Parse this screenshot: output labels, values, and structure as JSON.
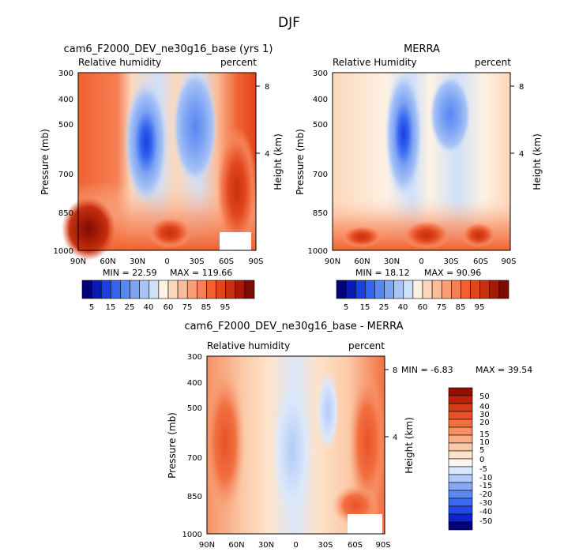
{
  "page": {
    "title": "DJF"
  },
  "scale": {
    "full_colors": [
      "#02027d",
      "#0a1ab5",
      "#1d3fde",
      "#3465f0",
      "#5687f2",
      "#7ea4f4",
      "#a8c3f6",
      "#cfe0f9",
      "#fdf1e3",
      "#fcd7bb",
      "#fbbc99",
      "#f99e77",
      "#f67f55",
      "#f1612f",
      "#e0451c",
      "#c5300f",
      "#a61b08",
      "#7d0b03"
    ],
    "diff_colors": [
      "#02027d",
      "#0f24c4",
      "#2048e6",
      "#3869ef",
      "#5b89f2",
      "#86a9f4",
      "#b1caf7",
      "#dbe8fb",
      "#fdf6ee",
      "#fde3cb",
      "#fbc9a7",
      "#f9ad85",
      "#f68f63",
      "#f27040",
      "#e95126",
      "#d63a16",
      "#b8240b",
      "#8e1104"
    ]
  },
  "panels": [
    {
      "id": "model",
      "title": "cam6_F2000_DEV_ne30g16_base (yrs 1)",
      "left_label": "Relative humidity",
      "right_label": "percent",
      "ylabel": "Pressure (mb)",
      "ylabel_right": "Height (km)",
      "min_text": "MIN =   22.59",
      "max_text": "MAX =  119.66"
    },
    {
      "id": "obs",
      "title": "MERRA",
      "left_label": "Relative Humidity",
      "right_label": "percent",
      "ylabel": "Pressure (mb)",
      "ylabel_right": "Height (km)",
      "min_text": "MIN =   18.12",
      "max_text": "MAX =   90.96"
    },
    {
      "id": "diff",
      "title": "cam6_F2000_DEV_ne30g16_base - MERRA",
      "left_label": "Relative humidity",
      "right_label": "percent",
      "ylabel": "Pressure (mb)",
      "ylabel_right": "Height (km)",
      "min_text": "MIN =   -6.83",
      "max_text": "MAX =   39.54"
    }
  ],
  "chart_data": [
    {
      "type": "heatmap",
      "title": "cam6_F2000_DEV_ne30g16_base (yrs 1)",
      "variable": "Relative humidity",
      "units": "percent",
      "xlabel": "",
      "ylabel": "Pressure (mb)",
      "y2label": "Height (km)",
      "x_ticks": [
        "90N",
        "60N",
        "30N",
        "0",
        "30S",
        "60S",
        "90S"
      ],
      "x_range": [
        90,
        -90
      ],
      "y_ticks": [
        "300",
        "400",
        "500",
        "700",
        "850",
        "1000"
      ],
      "y_range": [
        300,
        1000
      ],
      "y2_ticks": [
        "8",
        "4"
      ],
      "min": 22.59,
      "max": 119.66,
      "colorbar_levels": [
        "5",
        "15",
        "25",
        "40",
        "60",
        "75",
        "85",
        "95"
      ],
      "features": [
        {
          "lat": 20,
          "p": 520,
          "value": 25
        },
        {
          "lat": -20,
          "p": 470,
          "value": 35
        },
        {
          "lat": -70,
          "p": 650,
          "value": 95
        },
        {
          "lat": 80,
          "p": 950,
          "value": 110
        },
        {
          "lat": 0,
          "p": 960,
          "value": 85
        }
      ]
    },
    {
      "type": "heatmap",
      "title": "MERRA",
      "variable": "Relative Humidity",
      "units": "percent",
      "xlabel": "",
      "ylabel": "Pressure (mb)",
      "y2label": "Height (km)",
      "x_ticks": [
        "90N",
        "60N",
        "30N",
        "0",
        "30S",
        "60S",
        "90S"
      ],
      "x_range": [
        90,
        -90
      ],
      "y_ticks": [
        "300",
        "400",
        "500",
        "700",
        "850",
        "1000"
      ],
      "y_range": [
        300,
        1000
      ],
      "y2_ticks": [
        "8",
        "4"
      ],
      "min": 18.12,
      "max": 90.96,
      "colorbar_levels": [
        "5",
        "15",
        "25",
        "40",
        "60",
        "75",
        "85",
        "95"
      ],
      "features": [
        {
          "lat": 17,
          "p": 500,
          "value": 18
        },
        {
          "lat": -25,
          "p": 470,
          "value": 30
        },
        {
          "lat": 0,
          "p": 960,
          "value": 85
        },
        {
          "lat": -55,
          "p": 960,
          "value": 85
        },
        {
          "lat": 60,
          "p": 960,
          "value": 80
        }
      ]
    },
    {
      "type": "heatmap",
      "title": "cam6_F2000_DEV_ne30g16_base - MERRA",
      "variable": "Relative humidity",
      "units": "percent",
      "xlabel": "",
      "ylabel": "Pressure (mb)",
      "y2label": "Height (km)",
      "x_ticks": [
        "90N",
        "60N",
        "30N",
        "0",
        "30S",
        "60S",
        "90S"
      ],
      "x_range": [
        90,
        -90
      ],
      "y_ticks": [
        "300",
        "400",
        "500",
        "700",
        "850",
        "1000"
      ],
      "y_range": [
        300,
        1000
      ],
      "y2_ticks": [
        "8",
        "4"
      ],
      "min": -6.83,
      "max": 39.54,
      "colorbar_levels": [
        "50",
        "40",
        "30",
        "20",
        "15",
        "10",
        "5",
        "0",
        "-5",
        "-10",
        "-15",
        "-20",
        "-30",
        "-40",
        "-50"
      ],
      "features": [
        {
          "lat": 75,
          "p": 600,
          "value": 25
        },
        {
          "lat": -72,
          "p": 700,
          "value": 28
        },
        {
          "lat": 5,
          "p": 700,
          "value": -6
        },
        {
          "lat": -55,
          "p": 900,
          "value": 30
        }
      ]
    }
  ]
}
